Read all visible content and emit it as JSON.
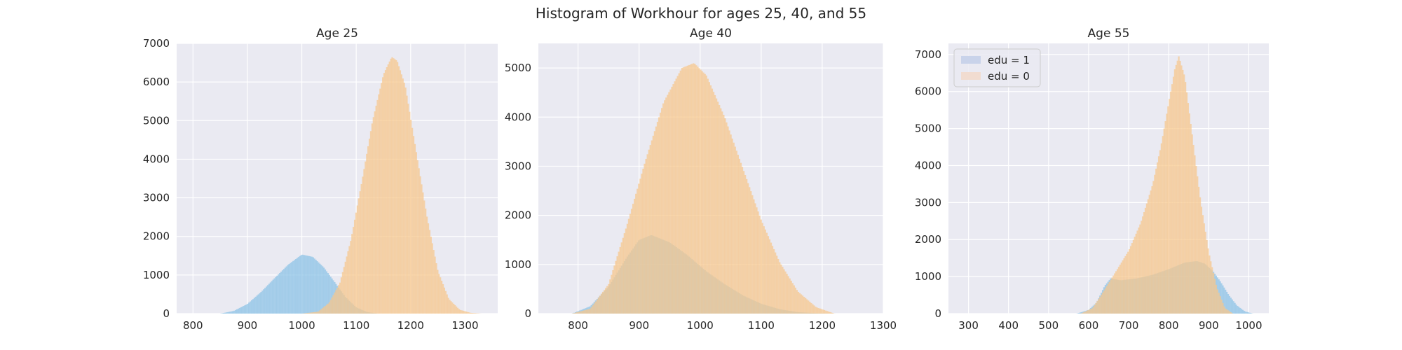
{
  "figure": {
    "suptitle": "Histogram of Workhour for ages 25, 40, and 55"
  },
  "colors": {
    "panel_bg": "#EAEAF2",
    "grid": "#FFFFFF",
    "edu1_fill": "#8EC4E6",
    "edu0_fill": "#F6C88E",
    "overlap_fill": "#C4BF9A",
    "legend_edu1": "#C9D3EA",
    "legend_edu0": "#F1DCD0"
  },
  "legend": {
    "location": "upper-left of third panel",
    "entries": [
      {
        "label": "edu = 1",
        "color_key": "legend_edu1"
      },
      {
        "label": "edu = 0",
        "color_key": "legend_edu0"
      }
    ]
  },
  "chart_data": [
    {
      "type": "histogram",
      "title": "Age 25",
      "xlim": [
        770,
        1360
      ],
      "ylim": [
        0,
        7000
      ],
      "xticks": [
        800,
        900,
        1000,
        1100,
        1200,
        1300
      ],
      "yticks": [
        0,
        1000,
        2000,
        3000,
        4000,
        5000,
        6000,
        7000
      ],
      "grid": true,
      "series": [
        {
          "name": "edu = 1",
          "x": [
            850,
            875,
            900,
            925,
            950,
            975,
            1000,
            1020,
            1040,
            1060,
            1080,
            1100,
            1120,
            1140
          ],
          "y": [
            0,
            70,
            250,
            560,
            920,
            1270,
            1530,
            1470,
            1200,
            820,
            430,
            160,
            40,
            0
          ]
        },
        {
          "name": "edu = 0",
          "x": [
            1000,
            1030,
            1050,
            1070,
            1090,
            1110,
            1130,
            1150,
            1165,
            1175,
            1190,
            1210,
            1230,
            1250,
            1270,
            1290,
            1310,
            1330
          ],
          "y": [
            0,
            50,
            280,
            800,
            1900,
            3400,
            5000,
            6200,
            6650,
            6550,
            5900,
            4200,
            2500,
            1100,
            380,
            100,
            20,
            0
          ]
        }
      ]
    },
    {
      "type": "histogram",
      "title": "Age 40",
      "xlim": [
        735,
        1300
      ],
      "ylim": [
        0,
        5500
      ],
      "xticks": [
        800,
        900,
        1000,
        1100,
        1200,
        1300
      ],
      "yticks": [
        0,
        1000,
        2000,
        3000,
        4000,
        5000
      ],
      "grid": true,
      "series": [
        {
          "name": "edu = 1",
          "x": [
            790,
            820,
            850,
            880,
            900,
            920,
            950,
            980,
            1010,
            1040,
            1070,
            1100,
            1130,
            1160,
            1190,
            1220
          ],
          "y": [
            0,
            150,
            550,
            1150,
            1500,
            1600,
            1450,
            1180,
            860,
            600,
            370,
            200,
            90,
            30,
            10,
            0
          ]
        },
        {
          "name": "edu = 0",
          "x": [
            790,
            820,
            850,
            880,
            910,
            940,
            970,
            990,
            1010,
            1040,
            1070,
            1100,
            1130,
            1160,
            1190,
            1220
          ],
          "y": [
            0,
            100,
            600,
            1800,
            3100,
            4300,
            5000,
            5100,
            4850,
            4000,
            2950,
            1900,
            1050,
            450,
            130,
            0
          ]
        }
      ]
    },
    {
      "type": "histogram",
      "title": "Age 55",
      "xlim": [
        250,
        1050
      ],
      "ylim": [
        0,
        7300
      ],
      "xticks": [
        300,
        400,
        500,
        600,
        700,
        800,
        900,
        1000
      ],
      "yticks": [
        0,
        1000,
        2000,
        3000,
        4000,
        5000,
        6000,
        7000
      ],
      "grid": true,
      "series": [
        {
          "name": "edu = 1",
          "x": [
            570,
            600,
            620,
            640,
            655,
            680,
            720,
            760,
            800,
            840,
            870,
            890,
            910,
            930,
            950,
            970,
            990,
            1010
          ],
          "y": [
            0,
            100,
            300,
            750,
            950,
            900,
            950,
            1050,
            1200,
            1380,
            1420,
            1350,
            1150,
            850,
            500,
            220,
            60,
            0
          ]
        },
        {
          "name": "edu = 0",
          "x": [
            580,
            610,
            640,
            660,
            680,
            700,
            730,
            760,
            780,
            800,
            815,
            825,
            840,
            860,
            880,
            900,
            920,
            940,
            960
          ],
          "y": [
            0,
            150,
            650,
            1000,
            1350,
            1700,
            2450,
            3500,
            4500,
            5700,
            6600,
            6950,
            6400,
            4700,
            3000,
            1650,
            700,
            150,
            0
          ]
        }
      ]
    }
  ]
}
